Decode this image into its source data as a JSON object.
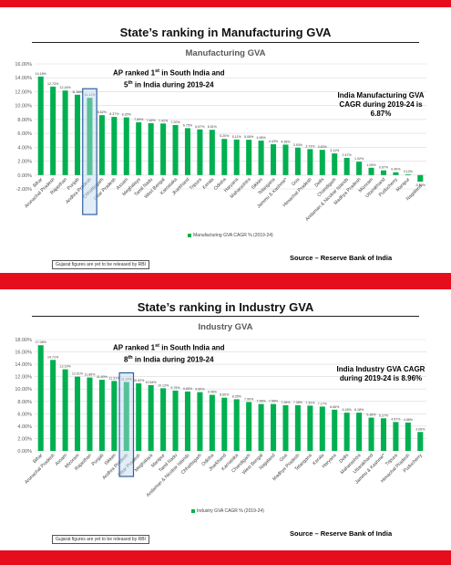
{
  "panels": [
    {
      "slide_title": "State’s ranking in Manufacturing GVA",
      "chart_title": "Manufacturing GVA",
      "callout_left": {
        "line1_pre": "AP ranked 1",
        "line1_sup": "st",
        "line1_post": " in South India and",
        "line2_pre": "5",
        "line2_sup": "th",
        "line2_post": " in India during 2019-24"
      },
      "callout_right": "India Manufacturing GVA CAGR during 2019-24 is 6.87%",
      "legend": "Manufacturing GVA CAGR % (2019-24)",
      "note": "Gujarat figures are yet to be released by RBI",
      "source": "Source – Reserve Bank of India"
    },
    {
      "slide_title": "State’s ranking in Industry GVA",
      "chart_title": "Industry GVA",
      "callout_left": {
        "line1_pre": "AP ranked 1",
        "line1_sup": "st",
        "line1_post": " in South India and",
        "line2_pre": "8",
        "line2_sup": "th",
        "line2_post": " in India during 2019-24"
      },
      "callout_right": "India Industry GVA CAGR during 2019-24 is 8.96%",
      "legend": "Industry GVA CAGR % (2019-24)",
      "note": "Gujarat figures are yet to be released by RBI",
      "source": "Source – Reserve Bank of India"
    }
  ],
  "chart_data": [
    {
      "type": "bar",
      "title": "Manufacturing GVA",
      "series": [
        {
          "name": "Manufacturing GVA CAGR % (2019-24)",
          "color": "#00b050"
        }
      ],
      "categories": [
        "Bihar",
        "Arunachal Pradesh",
        "Rajasthan",
        "Punjab",
        "Andhra Pradesh",
        "Chhattisgarh",
        "Uttar Pradesh",
        "Assam",
        "Meghalaya",
        "Tamil Nadu",
        "West Bengal",
        "Karnataka",
        "Jharkhand",
        "Tripura",
        "Kerala",
        "Odisha",
        "Haryana",
        "Maharashtra",
        "Sikkim",
        "Telangana",
        "Jammu & Kashmir*",
        "Goa",
        "Himachal Pradesh",
        "Delhi",
        "Chandigarh",
        "Andaman & Nicobar Islands",
        "Madhya Pradesh",
        "Mizoram",
        "Uttarakhand",
        "Puducherry",
        "Manipur",
        "Nagaland"
      ],
      "values": [
        14.18,
        12.73,
        12.16,
        11.56,
        11.11,
        8.62,
        8.37,
        8.3,
        7.59,
        7.46,
        7.42,
        7.2,
        6.75,
        6.57,
        6.51,
        5.2,
        5.11,
        5.08,
        4.96,
        4.43,
        4.38,
        3.93,
        3.73,
        3.63,
        3.11,
        2.47,
        1.92,
        1.05,
        0.67,
        0.4,
        0.1,
        -0.95
      ],
      "labels": [
        "14.18%",
        "12.73%",
        "12.16%",
        "11.56%",
        "11.11%",
        "8.62%",
        "8.37%",
        "8.30%",
        "7.59%",
        "7.46%",
        "7.42%",
        "7.20%",
        "6.75%",
        "6.57%",
        "6.51%",
        "5.20%",
        "5.11%",
        "5.08%",
        "4.96%",
        "4.43%",
        "4.38%",
        "3.93%",
        "3.73%",
        "3.63%",
        "3.11%",
        "2.47%",
        "1.92%",
        "1.05%",
        "0.67%",
        "0.40%",
        "0.10%",
        "-0.95%"
      ],
      "highlight_index": 4,
      "ylim": [
        -2,
        16
      ],
      "yticks": [
        "-2.00%",
        "0.00%",
        "2.00%",
        "4.00%",
        "6.00%",
        "8.00%",
        "10.00%",
        "12.00%",
        "14.00%",
        "16.00%"
      ],
      "ytick_values": [
        -2,
        0,
        2,
        4,
        6,
        8,
        10,
        12,
        14,
        16
      ],
      "legend_position": "bottom"
    },
    {
      "type": "bar",
      "title": "Industry GVA",
      "series": [
        {
          "name": "Industry GVA CAGR % (2019-24)",
          "color": "#00b050"
        }
      ],
      "categories": [
        "Bihar",
        "Arunachal Pradesh",
        "Assam",
        "Mizoram",
        "Rajasthan",
        "Punjab",
        "Sikkim",
        "Andhra Pradesh",
        "Uttar Pradesh",
        "Meghalaya",
        "Manipur",
        "Tamil Nadu",
        "Andaman & Nicobar Islands",
        "Chhattisgarh",
        "Odisha",
        "Jharkhand",
        "Karnataka",
        "Chandigarh",
        "West Bengal",
        "Nagaland",
        "Goa",
        "Madhya Pradesh",
        "Telangana",
        "Kerala",
        "Haryana",
        "Delhi",
        "Maharashtra",
        "Uttarakhand",
        "Jammu & Kashmir*",
        "Tripura",
        "Himachal Pradesh",
        "Puducherry"
      ],
      "values": [
        17.08,
        14.71,
        13.19,
        12.01,
        11.86,
        11.5,
        11.31,
        11.14,
        10.92,
        10.64,
        10.13,
        9.75,
        9.6,
        9.5,
        9.06,
        8.6,
        8.35,
        7.9,
        7.58,
        7.58,
        7.38,
        7.38,
        7.32,
        7.17,
        6.66,
        6.18,
        6.18,
        5.38,
        5.27,
        4.67,
        4.58,
        3.06
      ],
      "labels": [
        "17.08%",
        "14.71%",
        "13.19%",
        "12.01%",
        "11.86%",
        "11.50%",
        "11.31%",
        "11.14%",
        "10.92%",
        "10.64%",
        "10.13%",
        "9.75%",
        "9.60%",
        "9.50%",
        "9.06%",
        "8.60%",
        "8.35%",
        "7.90%",
        "7.58%",
        "7.58%",
        "7.38%",
        "7.38%",
        "7.32%",
        "7.17%",
        "6.66%",
        "6.18%",
        "6.18%",
        "5.38%",
        "5.27%",
        "4.67%",
        "4.58%",
        "3.06%"
      ],
      "highlight_index": 7,
      "ylim": [
        0,
        18
      ],
      "yticks": [
        "0.00%",
        "2.00%",
        "4.00%",
        "6.00%",
        "8.00%",
        "10.00%",
        "12.00%",
        "14.00%",
        "16.00%",
        "18.00%"
      ],
      "ytick_values": [
        0,
        2,
        4,
        6,
        8,
        10,
        12,
        14,
        16,
        18
      ],
      "legend_position": "bottom"
    }
  ]
}
